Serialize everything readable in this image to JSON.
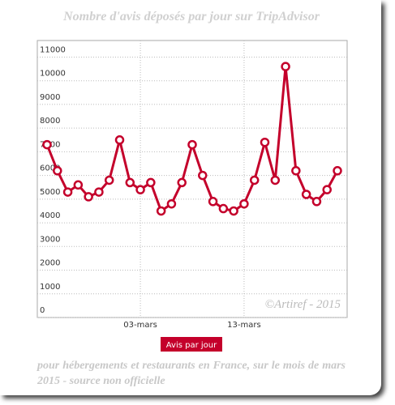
{
  "chart_data": {
    "type": "line",
    "title": "Nombre d'avis déposés par jour sur TripAdvisor",
    "annotation": "©Artiref - 2015",
    "footer": "pour hébergements et restaurants en France, sur le mois de mars 2015 - source non officielle",
    "categories": [
      null,
      null,
      null,
      null,
      null,
      null,
      null,
      null,
      null,
      "03-mars",
      null,
      null,
      null,
      null,
      null,
      null,
      null,
      null,
      null,
      "13-mars",
      null,
      null,
      null,
      null,
      null,
      null,
      null,
      null,
      null
    ],
    "series": [
      {
        "name": "Avis par jour",
        "color": "#c4002b",
        "values": [
          7300,
          6200,
          5300,
          5600,
          5100,
          5300,
          5800,
          7500,
          5700,
          5400,
          5700,
          4500,
          4800,
          5700,
          7300,
          6000,
          4900,
          4600,
          4500,
          4800,
          5800,
          7400,
          5800,
          10600,
          6200,
          5200,
          4900,
          5400,
          6200
        ]
      }
    ],
    "ylim": [
      0,
      11700
    ],
    "yticks": [
      0,
      1000,
      2000,
      3000,
      4000,
      5000,
      6000,
      7000,
      8000,
      9000,
      10000,
      11000
    ],
    "grid": true
  }
}
